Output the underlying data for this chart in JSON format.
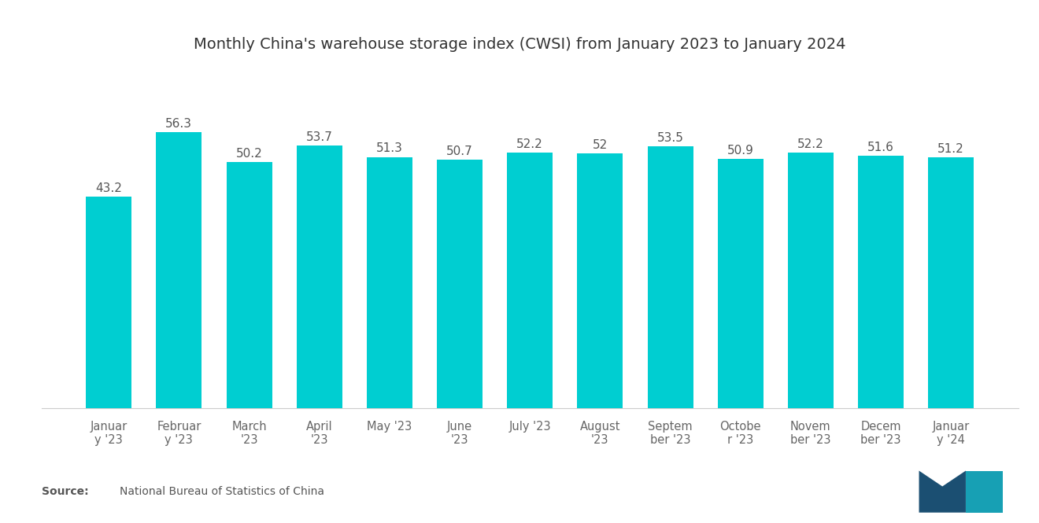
{
  "title": "Monthly China's warehouse storage index (CWSI) from January 2023 to January 2024",
  "categories": [
    "Januar\ny '23",
    "Februar\ny '23",
    "March\n'23",
    "April\n'23",
    "May '23",
    "June\n'23",
    "July '23",
    "August\n'23",
    "Septem\nber '23",
    "Octobe\nr '23",
    "Novem\nber '23",
    "Decem\nber '23",
    "Januar\ny '24"
  ],
  "values": [
    43.2,
    56.3,
    50.2,
    53.7,
    51.3,
    50.7,
    52.2,
    52.0,
    53.5,
    50.9,
    52.2,
    51.6,
    51.2
  ],
  "bar_color": "#00CED1",
  "background_color": "#ffffff",
  "title_fontsize": 14,
  "label_fontsize": 10.5,
  "value_fontsize": 11,
  "source_bold": "Source:",
  "source_text": "  National Bureau of Statistics of China",
  "ylim": [
    0,
    62
  ]
}
